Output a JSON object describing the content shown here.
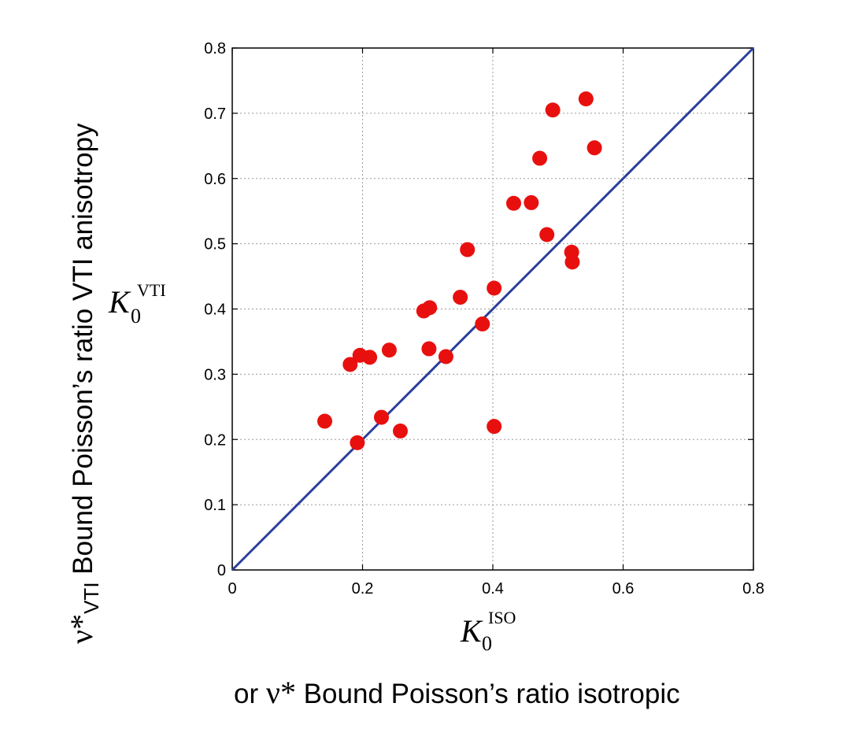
{
  "chart_data": {
    "type": "scatter",
    "xlim": [
      0,
      0.8
    ],
    "ylim": [
      0,
      0.8
    ],
    "x_ticks": [
      "0",
      "0.2",
      "0.4",
      "0.6",
      "0.8"
    ],
    "y_ticks": [
      "0",
      "0.1",
      "0.2",
      "0.3",
      "0.4",
      "0.5",
      "0.6",
      "0.7",
      "0.8"
    ],
    "grid": true,
    "xlabel_symbol": "K",
    "xlabel_superscript": "ISO",
    "xlabel_subscript": "0",
    "ylabel_symbol": "K",
    "ylabel_superscript": "VTI",
    "ylabel_subscript": "0",
    "x_caption_prefix": "or ",
    "x_caption_symbol": "ν*",
    "x_caption_text": " Bound Poisson’s ratio isotropic",
    "y_caption_symbol": "ν*",
    "y_caption_subscript": "VTI",
    "y_caption_text": " Bound Poisson’s ratio VTI anisotropy",
    "point_color": "#e8100e",
    "line_color": "#2b3f9c",
    "reference_line": {
      "x": [
        0,
        0.8
      ],
      "y": [
        0,
        0.8
      ]
    },
    "points": [
      {
        "x": 0.142,
        "y": 0.228
      },
      {
        "x": 0.181,
        "y": 0.315
      },
      {
        "x": 0.192,
        "y": 0.195
      },
      {
        "x": 0.196,
        "y": 0.329
      },
      {
        "x": 0.211,
        "y": 0.326
      },
      {
        "x": 0.229,
        "y": 0.234
      },
      {
        "x": 0.241,
        "y": 0.337
      },
      {
        "x": 0.258,
        "y": 0.213
      },
      {
        "x": 0.294,
        "y": 0.397
      },
      {
        "x": 0.303,
        "y": 0.402
      },
      {
        "x": 0.302,
        "y": 0.339
      },
      {
        "x": 0.328,
        "y": 0.327
      },
      {
        "x": 0.35,
        "y": 0.418
      },
      {
        "x": 0.361,
        "y": 0.491
      },
      {
        "x": 0.384,
        "y": 0.377
      },
      {
        "x": 0.402,
        "y": 0.432
      },
      {
        "x": 0.402,
        "y": 0.22
      },
      {
        "x": 0.432,
        "y": 0.562
      },
      {
        "x": 0.459,
        "y": 0.563
      },
      {
        "x": 0.472,
        "y": 0.631
      },
      {
        "x": 0.483,
        "y": 0.514
      },
      {
        "x": 0.492,
        "y": 0.705
      },
      {
        "x": 0.521,
        "y": 0.487
      },
      {
        "x": 0.522,
        "y": 0.472
      },
      {
        "x": 0.543,
        "y": 0.722
      },
      {
        "x": 0.556,
        "y": 0.647
      }
    ]
  }
}
